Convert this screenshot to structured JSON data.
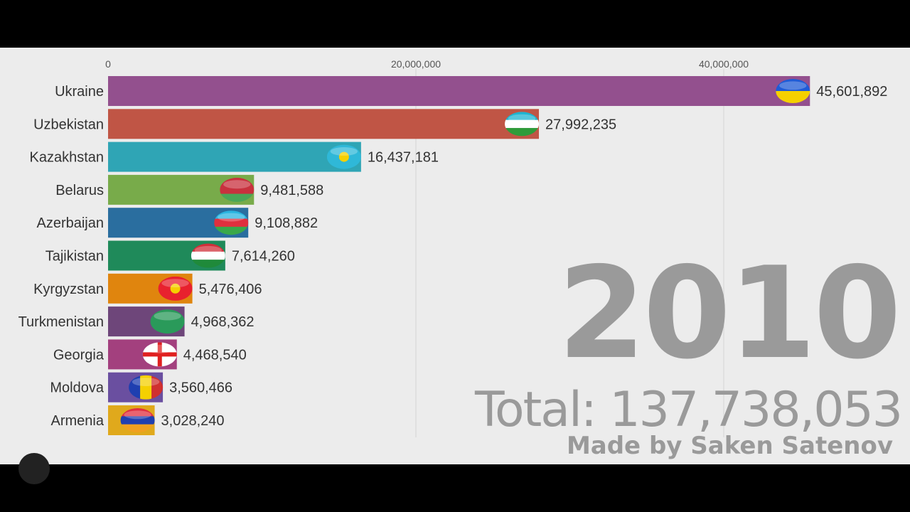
{
  "chart_data": {
    "type": "bar",
    "orientation": "horizontal",
    "categories": [
      "Ukraine",
      "Uzbekistan",
      "Kazakhstan",
      "Belarus",
      "Azerbaijan",
      "Tajikistan",
      "Kyrgyzstan",
      "Turkmenistan",
      "Georgia",
      "Moldova",
      "Armenia"
    ],
    "values": [
      45601892,
      27992235,
      16437181,
      9481588,
      9108882,
      7614260,
      5476406,
      4968362,
      4468540,
      3560466,
      3028240
    ],
    "value_labels": [
      "45,601,892",
      "27,992,235",
      "16,437,181",
      "9,481,588",
      "9,108,882",
      "7,614,260",
      "5,476,406",
      "4,968,362",
      "4,468,540",
      "3,560,466",
      "3,028,240"
    ],
    "colors": [
      "#93508e",
      "#c05545",
      "#2fa5b5",
      "#78ab4a",
      "#2a6e9f",
      "#1f8a5a",
      "#e0850e",
      "#6e467a",
      "#a3407e",
      "#6a4fa0",
      "#e0a91c"
    ],
    "flags": [
      {
        "dir": "h",
        "c": [
          "#1f5bd6",
          "#f5d000"
        ]
      },
      {
        "dir": "h",
        "c": [
          "#1eb4d0",
          "#ffffff",
          "#2f9b3a"
        ]
      },
      {
        "dir": "h",
        "c": [
          "#2fb8d8"
        ]
      },
      {
        "dir": "h",
        "c": [
          "#c8313e",
          "#c8313e",
          "#4aa657"
        ]
      },
      {
        "dir": "h",
        "c": [
          "#2bb5e0",
          "#e0303e",
          "#3aa84a"
        ]
      },
      {
        "dir": "h",
        "c": [
          "#d0303a",
          "#ffffff",
          "#1f8a3a"
        ]
      },
      {
        "dir": "h",
        "c": [
          "#e8212e"
        ]
      },
      {
        "dir": "h",
        "c": [
          "#2a9a5a"
        ]
      },
      {
        "dir": "h",
        "c": [
          "#ffffff"
        ]
      },
      {
        "dir": "v",
        "c": [
          "#1f3fb0",
          "#f5d000",
          "#d03030"
        ]
      },
      {
        "dir": "h",
        "c": [
          "#e03040",
          "#2040b0",
          "#f0a020"
        ]
      }
    ],
    "x_ticks": [
      0,
      20000000,
      40000000
    ],
    "x_tick_labels": [
      "0",
      "20,000,000",
      "40,000,000"
    ],
    "xlim": [
      0,
      45601892
    ],
    "year": "2010",
    "total": "Total: 137,738,053",
    "credit": "Made by Saken Satenov",
    "grid": true
  }
}
